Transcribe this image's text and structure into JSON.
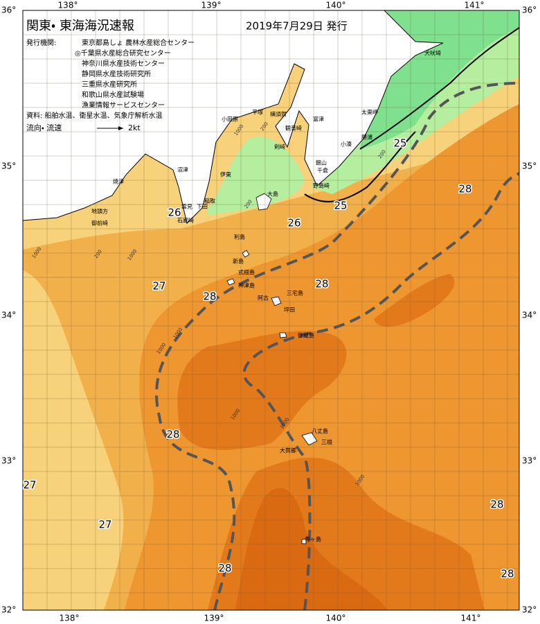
{
  "header": {
    "title": "関東・ 東海海況速報",
    "date": "2019年7月29日 発行"
  },
  "info": {
    "issuer_label": "発行機関:",
    "issuers": [
      "東京都島しょ 農林水産総合センター",
      "◎千葉県水産総合研究センター",
      "神奈川県水産技術センター",
      "静岡県水産技術研究所",
      "三重県水産研究所",
      "和歌山県水産試験場",
      "漁業情報サービスセンター"
    ],
    "source": "資料: 船舶水温、衛星水温、気象庁解析水温",
    "legend_label": "流向・ 流速",
    "legend_speed": "2kt"
  },
  "axes": {
    "lon": [
      "138°",
      "139°",
      "140°",
      "141°"
    ],
    "lat": [
      "36°",
      "35°",
      "34°",
      "33°",
      "32°"
    ]
  },
  "places": [
    "犬吠埼",
    "太東岬",
    "勝浦",
    "小湊",
    "館山",
    "千倉",
    "野島崎",
    "富津",
    "観音崎",
    "横須賀",
    "平塚",
    "小田原",
    "伊東",
    "稲取",
    "雲見",
    "下田",
    "石廊崎",
    "大島",
    "利島",
    "新島",
    "式根島",
    "神津島",
    "三宅島",
    "阿古",
    "坪田",
    "御蔵島",
    "八丈島",
    "三根",
    "大賀郷",
    "青ヶ島",
    "沼津",
    "焼津",
    "地頭方",
    "御前崎",
    "剣崎"
  ],
  "isotherm_labels": [
    25,
    25,
    26,
    26,
    27,
    28,
    28,
    28,
    28,
    27,
    27,
    28,
    28,
    28
  ],
  "depth_labels": [
    "1000",
    "200",
    "1000",
    "200",
    "1000",
    "1000",
    "1000",
    "1000",
    "1000",
    "1000",
    "200",
    "200"
  ]
}
